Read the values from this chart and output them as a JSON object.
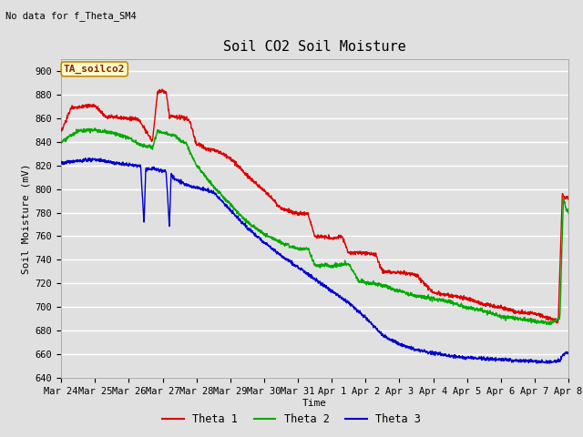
{
  "title": "Soil CO2 Soil Moisture",
  "subtitle": "No data for f_Theta_SM4",
  "ylabel": "Soil Moisture (mV)",
  "xlabel": "Time",
  "legend_label": "TA_soilco2",
  "ylim": [
    640,
    910
  ],
  "yticks": [
    640,
    660,
    680,
    700,
    720,
    740,
    760,
    780,
    800,
    820,
    840,
    860,
    880,
    900
  ],
  "xtick_labels": [
    "Mar 24",
    "Mar 25",
    "Mar 26",
    "Mar 27",
    "Mar 28",
    "Mar 29",
    "Mar 30",
    "Mar 31",
    "Apr 1",
    "Apr 2",
    "Apr 3",
    "Apr 4",
    "Apr 5",
    "Apr 6",
    "Apr 7",
    "Apr 8"
  ],
  "line_colors": [
    "#dd0000",
    "#00aa00",
    "#0000cc"
  ],
  "legend_entries": [
    "Theta 1",
    "Theta 2",
    "Theta 3"
  ],
  "background_color": "#e0e0e0",
  "plot_bg_color": "#e0e0e0",
  "grid_color": "#ffffff",
  "annotation_box_facecolor": "#ffffcc",
  "annotation_box_edgecolor": "#cc8800",
  "annotation_text_color": "#882200",
  "title_fontsize": 11,
  "label_fontsize": 8,
  "tick_fontsize": 7.5
}
